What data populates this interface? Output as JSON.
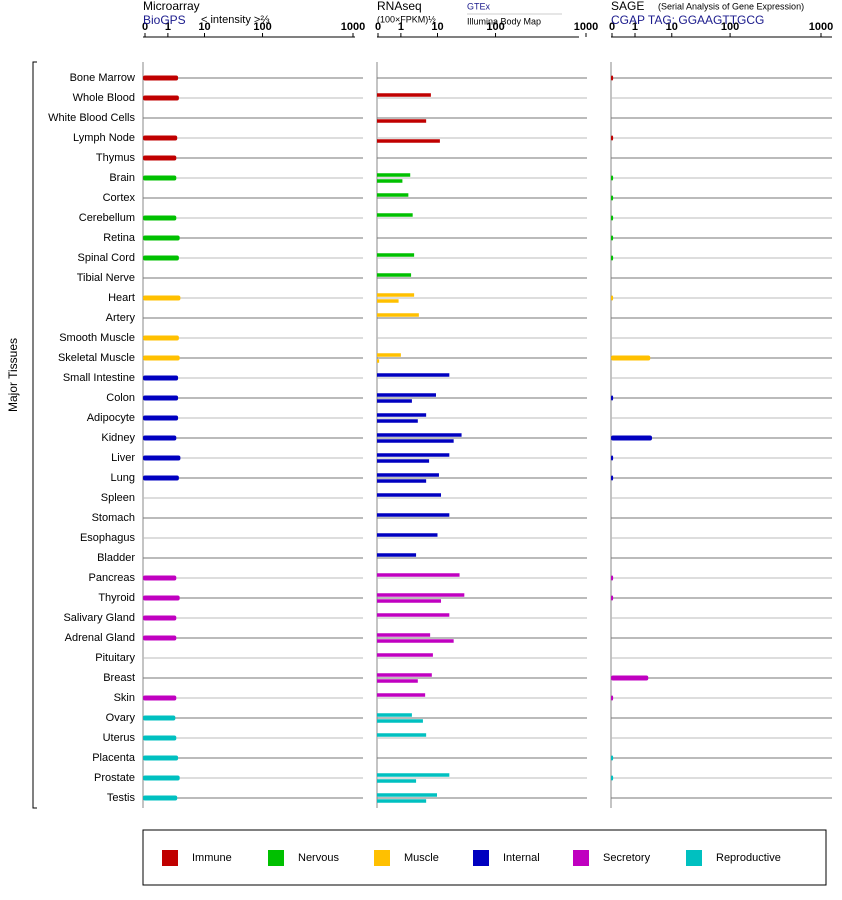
{
  "chart_data": {
    "type": "bar",
    "ylabel": "Major Tissues",
    "groups": [
      {
        "name": "Immune",
        "color": "#c00000",
        "categories": [
          "Bone Marrow",
          "Whole Blood",
          "White Blood Cells",
          "Lymph Node",
          "Thymus"
        ]
      },
      {
        "name": "Nervous",
        "color": "#00c000",
        "categories": [
          "Brain",
          "Cortex",
          "Cerebellum",
          "Retina",
          "Spinal Cord",
          "Tibial Nerve"
        ]
      },
      {
        "name": "Muscle",
        "color": "#ffc000",
        "categories": [
          "Heart",
          "Artery",
          "Smooth Muscle",
          "Skeletal Muscle"
        ]
      },
      {
        "name": "Internal",
        "color": "#0000c0",
        "categories": [
          "Small Intestine",
          "Colon",
          "Adipocyte",
          "Kidney",
          "Liver",
          "Lung",
          "Spleen",
          "Stomach",
          "Esophagus",
          "Bladder"
        ]
      },
      {
        "name": "Secretory",
        "color": "#c000c0",
        "categories": [
          "Pancreas",
          "Thyroid",
          "Salivary Gland",
          "Adrenal Gland",
          "Pituitary",
          "Breast",
          "Skin"
        ]
      },
      {
        "name": "Reproductive",
        "color": "#00c0c0",
        "categories": [
          "Ovary",
          "Uterus",
          "Placenta",
          "Prostate",
          "Testis"
        ]
      }
    ],
    "panels": [
      {
        "title": "Microarray",
        "xlabel": "< intensity >⅔",
        "xlim": [
          0,
          1000
        ],
        "xticks": [
          0,
          1,
          10,
          100,
          1000
        ],
        "series": [
          {
            "name": "BioGPS",
            "values": [
              1.9,
              2.0,
              null,
              1.8,
              1.7,
              1.7,
              null,
              1.7,
              2.1,
              2.0,
              null,
              2.2,
              null,
              2.0,
              2.1,
              1.9,
              1.9,
              1.9,
              1.7,
              2.2,
              2.0,
              null,
              null,
              null,
              null,
              1.7,
              2.1,
              1.7,
              1.7,
              null,
              null,
              1.7,
              1.6,
              1.7,
              1.9,
              2.1,
              1.8
            ]
          }
        ]
      },
      {
        "title": "RNAseq",
        "xlabel": "(100×FPKM)½",
        "xlim": [
          0,
          1000
        ],
        "xticks": [
          0,
          1,
          10,
          100,
          1000
        ],
        "series": [
          {
            "name": "GTEx",
            "values": [
              null,
              6.6,
              null,
              null,
              null,
              1.8,
              1.6,
              2.1,
              null,
              2.3,
              1.9,
              2.3,
              3.1,
              null,
              1.0,
              16,
              9.1,
              4.9,
              26,
              16,
              10.6,
              11.5,
              16,
              10,
              2.6,
              24,
              29,
              16,
              6.3,
              7.5,
              7.0,
              4.6,
              2.0,
              4.9,
              null,
              16,
              9.7
            ]
          },
          {
            "name": "Illumina Body Map",
            "values": [
              null,
              null,
              4.9,
              11,
              null,
              1.1,
              null,
              null,
              null,
              null,
              null,
              0.9,
              null,
              null,
              0.05,
              null,
              2.0,
              2.9,
              19,
              5.9,
              4.9,
              null,
              null,
              null,
              null,
              null,
              11.5,
              null,
              19,
              null,
              2.9,
              null,
              4.0,
              null,
              null,
              2.6,
              4.9
            ]
          }
        ]
      },
      {
        "title": "SAGE",
        "subtitle": "(Serial Analysis of Gene Expression)",
        "xlim": [
          0,
          1000
        ],
        "xticks": [
          0,
          1,
          10,
          100,
          1000
        ],
        "series": [
          {
            "name": "CGAP TAG: GGAAGTTGCG",
            "values": [
              0.05,
              null,
              null,
              0.05,
              null,
              0.05,
              0.05,
              0.05,
              0.05,
              0.05,
              null,
              0.05,
              null,
              null,
              2.6,
              null,
              0.05,
              null,
              2.9,
              0.05,
              0.05,
              null,
              null,
              null,
              null,
              0.05,
              0.05,
              null,
              null,
              null,
              2.3,
              0.05,
              null,
              null,
              0.05,
              0.05,
              null
            ]
          }
        ]
      }
    ]
  }
}
